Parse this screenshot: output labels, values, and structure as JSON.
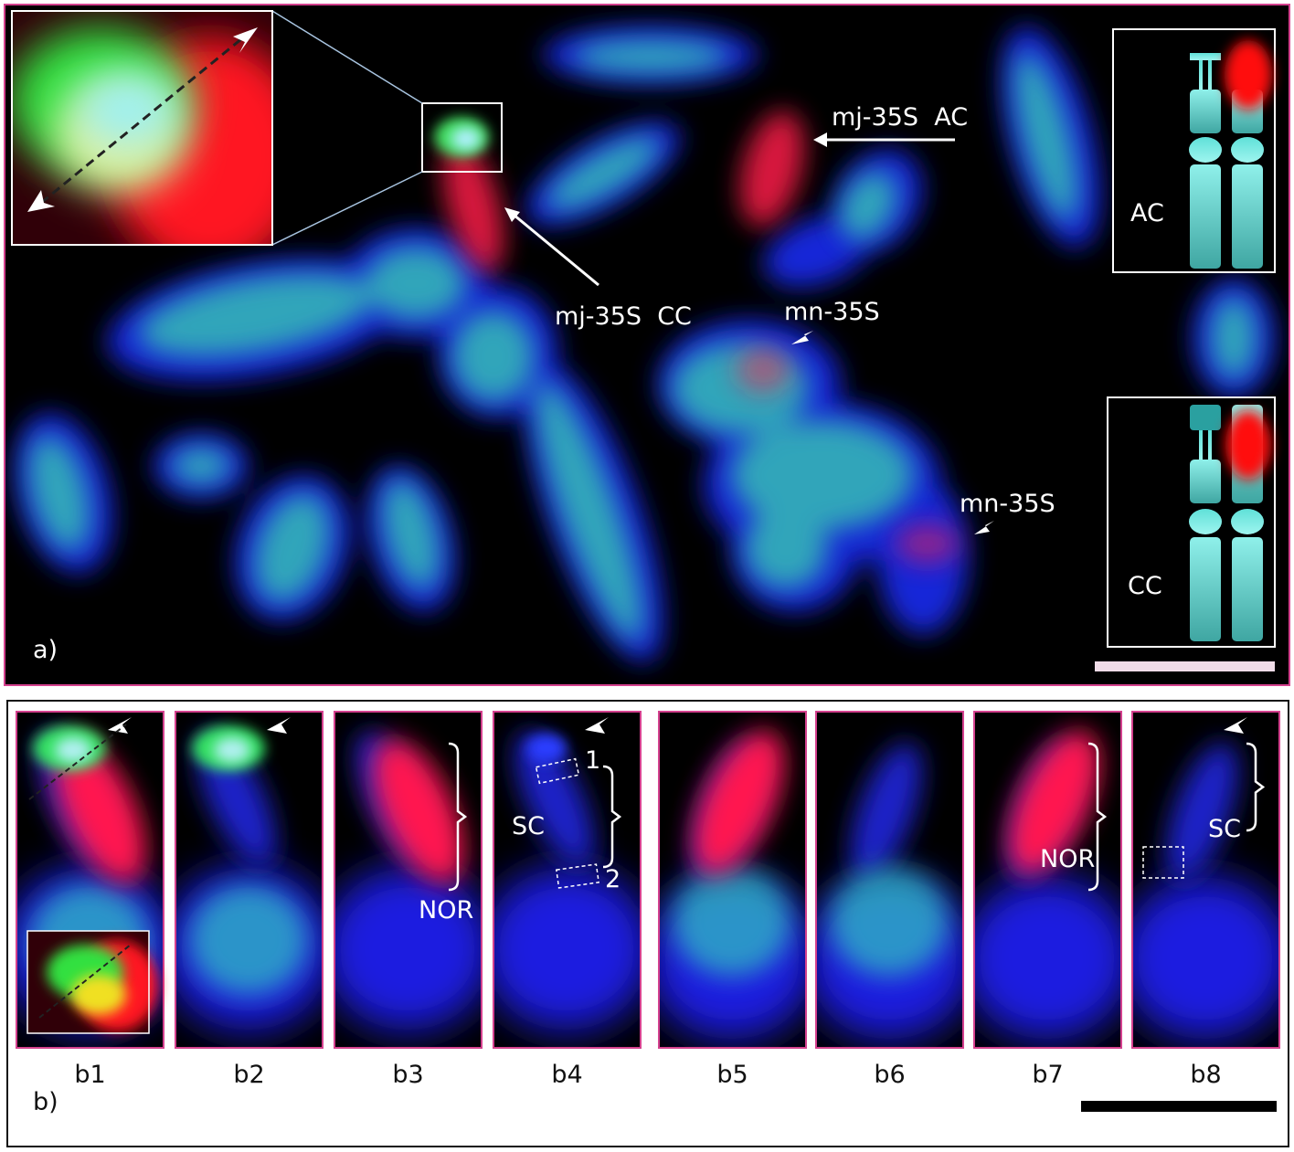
{
  "panel_a": {
    "label": "a)",
    "annotations": [
      "mj-35S  AC",
      "mj-35S  CC",
      "mn-35S",
      "mn-35S"
    ],
    "schematics": [
      "AC",
      "CC"
    ]
  },
  "panel_b": {
    "label": "b)",
    "subpanels": [
      {
        "label": "b1"
      },
      {
        "label": "b2"
      },
      {
        "label": "b3",
        "bracket_label": "NOR"
      },
      {
        "label": "b4",
        "bracket_label": "SC",
        "box_labels": [
          "1",
          "2"
        ]
      },
      {
        "label": "b5"
      },
      {
        "label": "b6"
      },
      {
        "label": "b7",
        "bracket_label": "NOR"
      },
      {
        "label": "b8",
        "bracket_label": "SC"
      }
    ]
  }
}
